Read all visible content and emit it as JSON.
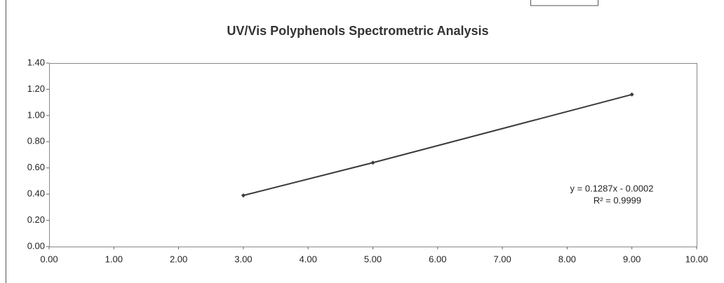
{
  "chart_data": {
    "type": "scatter",
    "title": "UV/Vis Polyphenols Spectrometric Analysis",
    "x": [
      3,
      5,
      9
    ],
    "values": [
      0.39,
      0.64,
      1.16
    ],
    "color": "#3a3a3a",
    "connect_points": true,
    "xlim": [
      0,
      10
    ],
    "xticks": [
      {
        "value": 0,
        "label": "0.00"
      },
      {
        "value": 1,
        "label": "1.00"
      },
      {
        "value": 2,
        "label": "2.00"
      },
      {
        "value": 3,
        "label": "3.00"
      },
      {
        "value": 4,
        "label": "4.00"
      },
      {
        "value": 5,
        "label": "5.00"
      },
      {
        "value": 6,
        "label": "6.00"
      },
      {
        "value": 7,
        "label": "7.00"
      },
      {
        "value": 8,
        "label": "8.00"
      },
      {
        "value": 9,
        "label": "9.00"
      },
      {
        "value": 10,
        "label": "10.00"
      }
    ],
    "ylim": [
      0,
      1.4
    ],
    "yticks": [
      {
        "value": 0,
        "label": "0.00"
      },
      {
        "value": 0.2,
        "label": "0.20"
      },
      {
        "value": 0.4,
        "label": "0.40"
      },
      {
        "value": 0.6,
        "label": "0.60"
      },
      {
        "value": 0.8,
        "label": "0.80"
      },
      {
        "value": 1,
        "label": "1.00"
      },
      {
        "value": 1.2,
        "label": "1.20"
      },
      {
        "value": 1.4,
        "label": "1.40"
      }
    ],
    "annotations": [
      "y = 0.1287x - 0.0002",
      "R² = 0.9999"
    ]
  }
}
